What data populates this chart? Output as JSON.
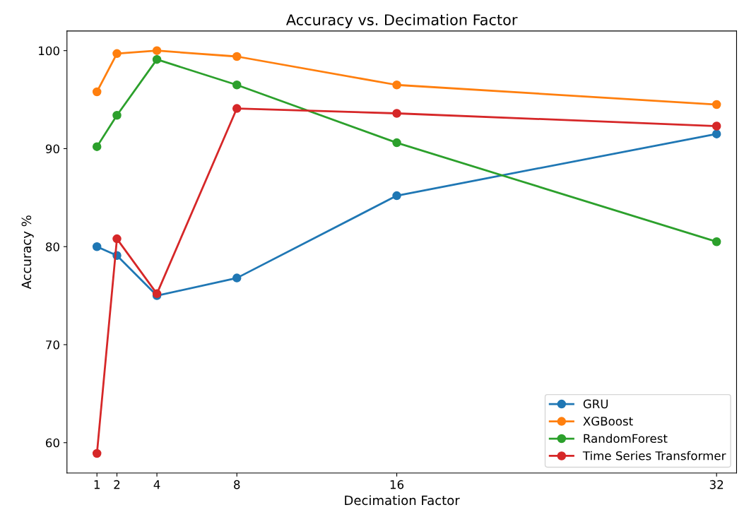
{
  "chart_data": {
    "type": "line",
    "title": "Accuracy vs. Decimation Factor",
    "xlabel": "Decimation Factor",
    "ylabel": "Accuracy %",
    "x": [
      1,
      2,
      4,
      8,
      16,
      32
    ],
    "series": [
      {
        "name": "GRU",
        "color": "#1f77b4",
        "values": [
          80.0,
          79.1,
          75.0,
          76.8,
          85.2,
          91.5
        ]
      },
      {
        "name": "XGBoost",
        "color": "#ff7f0e",
        "values": [
          95.8,
          99.7,
          100.0,
          99.4,
          96.5,
          94.5
        ]
      },
      {
        "name": "RandomForest",
        "color": "#2ca02c",
        "values": [
          90.2,
          93.4,
          99.1,
          96.5,
          90.6,
          80.5
        ]
      },
      {
        "name": "Time Series Transformer",
        "color": "#d62728",
        "values": [
          58.9,
          80.8,
          75.2,
          94.1,
          93.6,
          92.3
        ]
      }
    ],
    "xlim": [
      -0.5,
      33
    ],
    "ylim": [
      56.9,
      102
    ],
    "xticks": [
      1,
      2,
      4,
      8,
      16,
      32
    ],
    "yticks": [
      60,
      70,
      80,
      90,
      100
    ],
    "legend": "lower right",
    "marker": "circle",
    "line_style": "solid",
    "grid": false
  }
}
